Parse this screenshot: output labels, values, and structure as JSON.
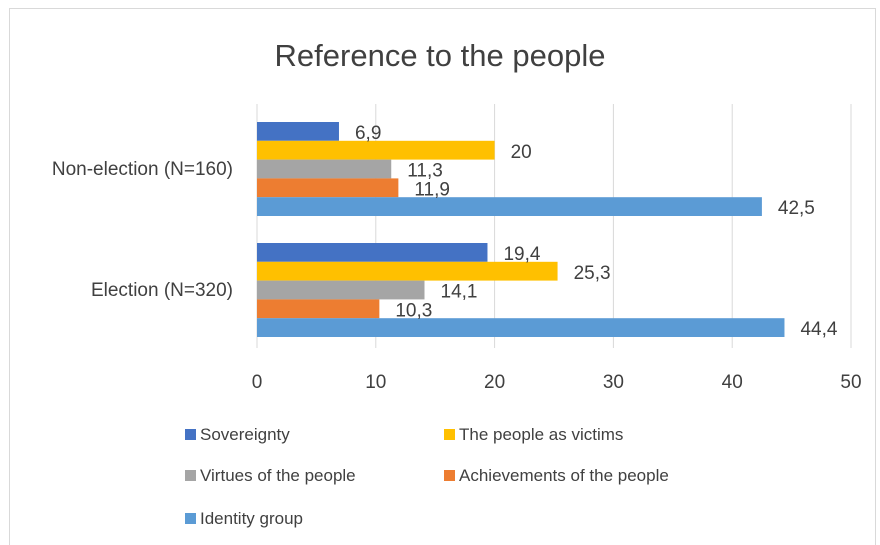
{
  "chart_data": {
    "type": "bar",
    "orientation": "horizontal",
    "title": "Reference to the people",
    "categories": [
      "Non-election (N=160)",
      "Election (N=320)"
    ],
    "series": [
      {
        "name": "Sovereignty",
        "color": "#4472c4",
        "values": [
          6.9,
          19.4
        ],
        "labels": [
          "6,9",
          "19,4"
        ]
      },
      {
        "name": "The people as victims",
        "color": "#ffc000",
        "values": [
          20,
          25.3
        ],
        "labels": [
          "20",
          "25,3"
        ]
      },
      {
        "name": "Virtues of the people",
        "color": "#a5a5a5",
        "values": [
          11.3,
          14.1
        ],
        "labels": [
          "11,3",
          "14,1"
        ]
      },
      {
        "name": "Achievements of the people",
        "color": "#ed7d31",
        "values": [
          11.9,
          10.3
        ],
        "labels": [
          "11,9",
          "10,3"
        ]
      },
      {
        "name": "Identity group",
        "color": "#5b9bd5",
        "values": [
          42.5,
          44.4
        ],
        "labels": [
          "42,5",
          "44,4"
        ]
      }
    ],
    "xlim": [
      0,
      50
    ],
    "xticks": [
      "0",
      "10",
      "20",
      "30",
      "40",
      "50"
    ],
    "grid": true,
    "legend_position": "bottom"
  }
}
